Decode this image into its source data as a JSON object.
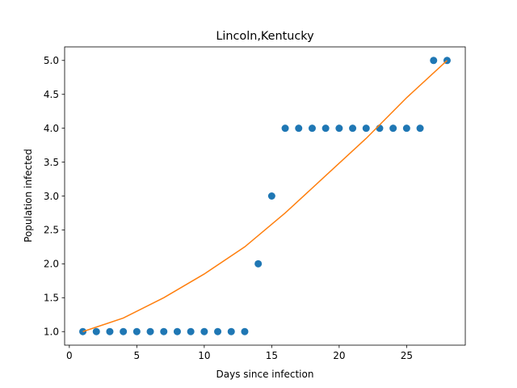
{
  "chart_data": {
    "type": "scatter",
    "title": "Lincoln,Kentucky",
    "xlabel": "Days since infection",
    "ylabel": "Population infected",
    "xlim": [
      -0.35,
      29.35
    ],
    "ylim": [
      0.8,
      5.2
    ],
    "xticks": [
      0,
      5,
      10,
      15,
      20,
      25
    ],
    "yticks": [
      1.0,
      1.5,
      2.0,
      2.5,
      3.0,
      3.5,
      4.0,
      4.5,
      5.0
    ],
    "grid": false,
    "series": [
      {
        "kind": "scatter",
        "color": "#1f77b4",
        "x": [
          1,
          2,
          3,
          4,
          5,
          6,
          7,
          8,
          9,
          10,
          11,
          12,
          13,
          14,
          15,
          16,
          17,
          18,
          19,
          20,
          21,
          22,
          23,
          24,
          25,
          26,
          27,
          28
        ],
        "y": [
          1,
          1,
          1,
          1,
          1,
          1,
          1,
          1,
          1,
          1,
          1,
          1,
          1,
          2,
          3,
          4,
          4,
          4,
          4,
          4,
          4,
          4,
          4,
          4,
          4,
          4,
          5,
          5
        ]
      },
      {
        "kind": "line",
        "color": "#ff7f0e",
        "x": [
          1,
          4,
          7,
          10,
          13,
          16,
          19,
          22,
          25,
          28
        ],
        "y": [
          1.0,
          1.2,
          1.5,
          1.85,
          2.25,
          2.75,
          3.3,
          3.85,
          4.45,
          5.0
        ]
      }
    ]
  }
}
